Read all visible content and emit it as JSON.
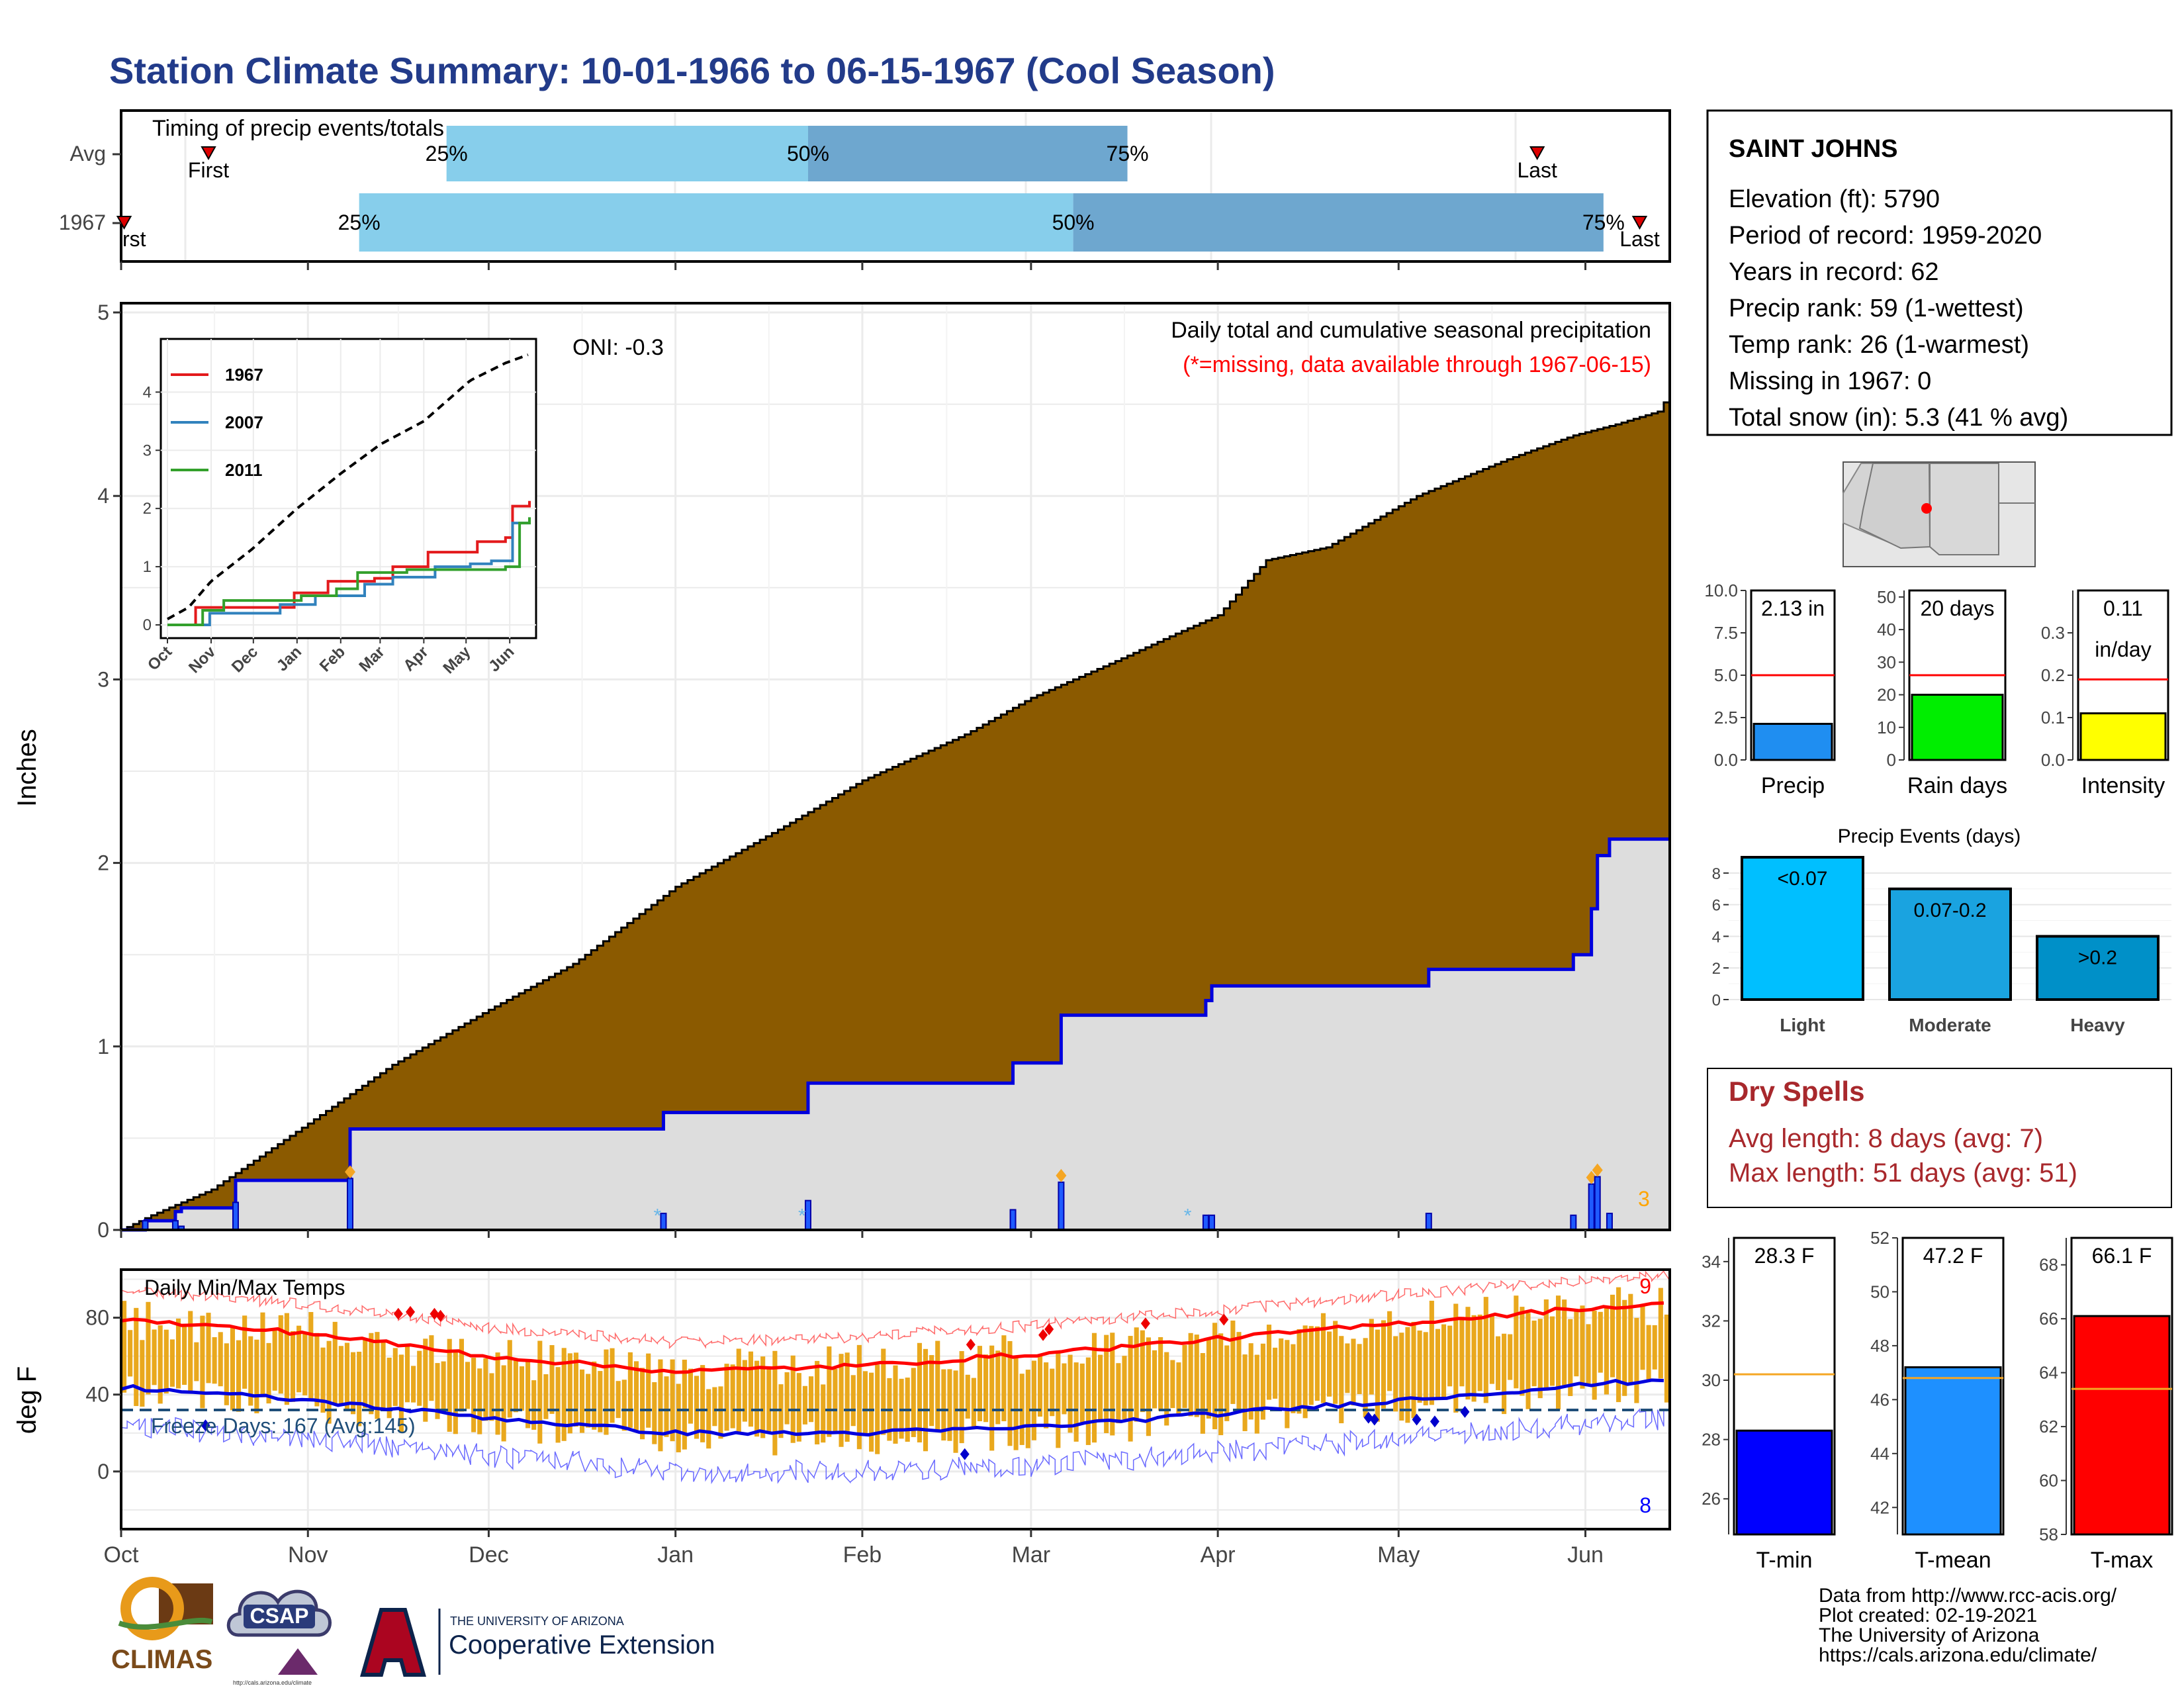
{
  "page": {
    "title": "Station Climate Summary: 10-01-1966 to 06-15-1967 (Cool Season)"
  },
  "chart_data": [
    {
      "id": "timing",
      "type": "bar",
      "title": "Timing of precip events/totals",
      "rows": [
        "Avg",
        "1967"
      ],
      "x_unit": "days since Oct 1",
      "xlim": [
        0,
        257
      ],
      "avg": {
        "first": 14.5,
        "p25": 54,
        "p50": 114,
        "p75": 167,
        "last": 235
      },
      "season": {
        "first": 0.5,
        "p25": 39.5,
        "p50": 158,
        "p75": 246,
        "last": 252
      },
      "labels": {
        "first": "First",
        "first_season": "rst",
        "last": "Last",
        "p25": "25%",
        "p50": "50%",
        "p75": "75%"
      }
    },
    {
      "id": "precip-main",
      "type": "area",
      "ylabel": "Inches",
      "ylim": [
        0,
        5
      ],
      "yticks": [
        0,
        1,
        2,
        3,
        4,
        5
      ],
      "xticks": [
        "Oct",
        "Nov",
        "Dec",
        "Jan",
        "Feb",
        "Mar",
        "Apr",
        "May",
        "Jun"
      ],
      "oni": "ONI: -0.3",
      "caption": "Daily total and cumulative seasonal precipitation",
      "missing_note": "(*=missing, data available through 1967-06-15)",
      "count_label": "3",
      "avg_cumulative": [
        [
          0,
          0
        ],
        [
          5,
          0.08
        ],
        [
          15,
          0.22
        ],
        [
          31,
          0.58
        ],
        [
          45,
          0.9
        ],
        [
          61,
          1.2
        ],
        [
          75,
          1.45
        ],
        [
          92,
          1.87
        ],
        [
          110,
          2.2
        ],
        [
          123,
          2.45
        ],
        [
          140,
          2.7
        ],
        [
          151,
          2.9
        ],
        [
          165,
          3.1
        ],
        [
          175,
          3.25
        ],
        [
          182,
          3.35
        ],
        [
          190,
          3.65
        ],
        [
          200,
          3.72
        ],
        [
          215,
          4.0
        ],
        [
          230,
          4.2
        ],
        [
          241,
          4.33
        ],
        [
          248,
          4.39
        ],
        [
          255,
          4.46
        ],
        [
          257,
          4.56
        ]
      ],
      "season_cumulative": [
        [
          0,
          0
        ],
        [
          4,
          0.05
        ],
        [
          9,
          0.1
        ],
        [
          10,
          0.12
        ],
        [
          19,
          0.27
        ],
        [
          37,
          0.27
        ],
        [
          38,
          0.55
        ],
        [
          89,
          0.55
        ],
        [
          90,
          0.64
        ],
        [
          113,
          0.64
        ],
        [
          114,
          0.8
        ],
        [
          147,
          0.8
        ],
        [
          148,
          0.91
        ],
        [
          155,
          0.91
        ],
        [
          156,
          1.17
        ],
        [
          179,
          1.17
        ],
        [
          180,
          1.25
        ],
        [
          181,
          1.33
        ],
        [
          216,
          1.33
        ],
        [
          217,
          1.42
        ],
        [
          240,
          1.42
        ],
        [
          241,
          1.5
        ],
        [
          244,
          1.75
        ],
        [
          245,
          2.04
        ],
        [
          246,
          2.04
        ],
        [
          247,
          2.13
        ],
        [
          257,
          2.13
        ]
      ]
    },
    {
      "id": "precip-inset",
      "type": "line",
      "ylim": [
        0,
        4.8
      ],
      "yticks": [
        0,
        1,
        2,
        3,
        4
      ],
      "xticks": [
        "Oct",
        "Nov",
        "Dec",
        "Jan",
        "Feb",
        "Mar",
        "Apr",
        "May",
        "Jun"
      ],
      "series": [
        {
          "name": "1967",
          "color": "#e31a1c",
          "values": [
            [
              0,
              0
            ],
            [
              20,
              0.3
            ],
            [
              60,
              0.3
            ],
            [
              90,
              0.55
            ],
            [
              114,
              0.75
            ],
            [
              147,
              0.8
            ],
            [
              160,
              1.0
            ],
            [
              185,
              1.25
            ],
            [
              220,
              1.43
            ],
            [
              240,
              1.5
            ],
            [
              245,
              2.04
            ],
            [
              257,
              2.13
            ]
          ]
        },
        {
          "name": "2007",
          "color": "#3182bd",
          "values": [
            [
              0,
              0
            ],
            [
              30,
              0.2
            ],
            [
              61,
              0.2
            ],
            [
              80,
              0.35
            ],
            [
              105,
              0.5
            ],
            [
              140,
              0.7
            ],
            [
              160,
              0.82
            ],
            [
              190,
              1.0
            ],
            [
              215,
              1.05
            ],
            [
              230,
              1.1
            ],
            [
              245,
              1.75
            ],
            [
              257,
              1.78
            ]
          ]
        },
        {
          "name": "2011",
          "color": "#33a02c",
          "values": [
            [
              0,
              0
            ],
            [
              25,
              0.25
            ],
            [
              40,
              0.42
            ],
            [
              85,
              0.42
            ],
            [
              95,
              0.5
            ],
            [
              120,
              0.62
            ],
            [
              135,
              0.9
            ],
            [
              170,
              0.95
            ],
            [
              200,
              0.95
            ],
            [
              240,
              1.0
            ],
            [
              250,
              1.75
            ],
            [
              257,
              1.85
            ]
          ]
        }
      ],
      "avg_line": [
        [
          0,
          0.1
        ],
        [
          15,
          0.3
        ],
        [
          31,
          0.75
        ],
        [
          60,
          1.3
        ],
        [
          92,
          2.0
        ],
        [
          123,
          2.6
        ],
        [
          151,
          3.1
        ],
        [
          182,
          3.5
        ],
        [
          215,
          4.2
        ],
        [
          240,
          4.5
        ],
        [
          257,
          4.65
        ]
      ]
    },
    {
      "id": "temps",
      "type": "bar",
      "title": "Daily Min/Max Temps",
      "ylabel": "deg F",
      "ylim": [
        -30,
        105
      ],
      "yticks": [
        0,
        40,
        80
      ],
      "freeze_label": "Freeze Days: 167 (Avg:145)",
      "freeze_line": 32,
      "count_max": "9",
      "count_min": "8",
      "avg_max": [
        [
          0,
          79
        ],
        [
          31,
          72
        ],
        [
          61,
          60
        ],
        [
          92,
          52
        ],
        [
          123,
          55
        ],
        [
          151,
          61
        ],
        [
          182,
          69
        ],
        [
          212,
          77
        ],
        [
          243,
          85
        ],
        [
          257,
          87
        ]
      ],
      "avg_min": [
        [
          0,
          44
        ],
        [
          31,
          37
        ],
        [
          61,
          28
        ],
        [
          92,
          20
        ],
        [
          123,
          20
        ],
        [
          151,
          23
        ],
        [
          182,
          30
        ],
        [
          212,
          37
        ],
        [
          243,
          45
        ],
        [
          257,
          48
        ]
      ]
    },
    {
      "id": "precip-gauge",
      "type": "bar",
      "label": "Precip",
      "value": 2.13,
      "value_label": "2.13 in",
      "avg": 5.0,
      "ylim": [
        0,
        10
      ],
      "yticks": [
        "0.0",
        "2.5",
        "5.0",
        "7.5",
        "10.0"
      ],
      "color": "#1f8ef1"
    },
    {
      "id": "raindays-gauge",
      "type": "bar",
      "label": "Rain days",
      "value": 20,
      "value_label": "20 days",
      "avg": 26,
      "ylim": [
        0,
        52
      ],
      "yticks": [
        "0",
        "10",
        "20",
        "30",
        "40",
        "50"
      ],
      "color": "#00ee00"
    },
    {
      "id": "intensity-gauge",
      "type": "bar",
      "label": "Intensity",
      "value": 0.11,
      "value_label": "0.11",
      "value_label2": "in/day",
      "avg": 0.19,
      "ylim": [
        0,
        0.4
      ],
      "yticks": [
        "0.0",
        "0.1",
        "0.2",
        "0.3"
      ],
      "color": "#ffff00"
    },
    {
      "id": "events",
      "type": "bar",
      "title": "Precip Events (days)",
      "categories": [
        "Light",
        "Moderate",
        "Heavy"
      ],
      "value_labels": [
        "<0.07",
        "0.07-0.2",
        ">0.2"
      ],
      "values": [
        9,
        7,
        4
      ],
      "ylim": [
        0,
        9
      ],
      "yticks": [
        0,
        2,
        4,
        6,
        8
      ],
      "colors": [
        "#00bfff",
        "#1aa3e0",
        "#0090c8"
      ]
    },
    {
      "id": "tmin-gauge",
      "type": "bar",
      "label": "T-min",
      "value": 28.3,
      "value_label": "28.3 F",
      "avg": 30.2,
      "ylim": [
        24.8,
        34.8
      ],
      "yticks": [
        26,
        28,
        30,
        32,
        34
      ],
      "color": "#0000ff"
    },
    {
      "id": "tmean-gauge",
      "type": "bar",
      "label": "T-mean",
      "value": 47.2,
      "value_label": "47.2 F",
      "avg": 46.8,
      "ylim": [
        41,
        52
      ],
      "yticks": [
        42,
        44,
        46,
        48,
        50,
        52
      ],
      "color": "#1e90ff"
    },
    {
      "id": "tmax-gauge",
      "type": "bar",
      "label": "T-max",
      "value": 66.1,
      "value_label": "66.1 F",
      "avg": 63.4,
      "ylim": [
        58,
        69
      ],
      "yticks": [
        58,
        60,
        62,
        64,
        66,
        68
      ],
      "color": "#ff0000"
    }
  ],
  "station": {
    "name": "SAINT JOHNS",
    "lines": [
      "Elevation (ft): 5790",
      "Period of record: 1959-2020",
      "Years in record: 62",
      "Precip rank: 59 (1-wettest)",
      "Temp rank: 26 (1-warmest)",
      "Missing in 1967: 0",
      "Total snow (in): 5.3 (41 % avg)"
    ]
  },
  "dry_spells": {
    "title": "Dry Spells",
    "avg": "Avg length: 8 days (avg: 7)",
    "max": "Max length: 51 days (avg: 51)"
  },
  "footer": {
    "lines": [
      "Data from http://www.rcc-acis.org/",
      "Plot created: 02-19-2021",
      "The University of Arizona",
      "https://cals.arizona.edu/climate/"
    ]
  },
  "logos": {
    "climas": "CLIMAS",
    "csap": "CSAP",
    "csap_url": "http://cals.arizona.edu/climate",
    "ua_line1": "THE UNIVERSITY OF ARIZONA",
    "ua_line2": "Cooperative Extension"
  },
  "colors": {
    "title": "#223b8a",
    "brown": "#8b5a00",
    "gray_fill": "#dddddd",
    "blue_line": "#0000dd",
    "bar_temp": "#e9a81d",
    "dry_spells": "#a8282c"
  }
}
